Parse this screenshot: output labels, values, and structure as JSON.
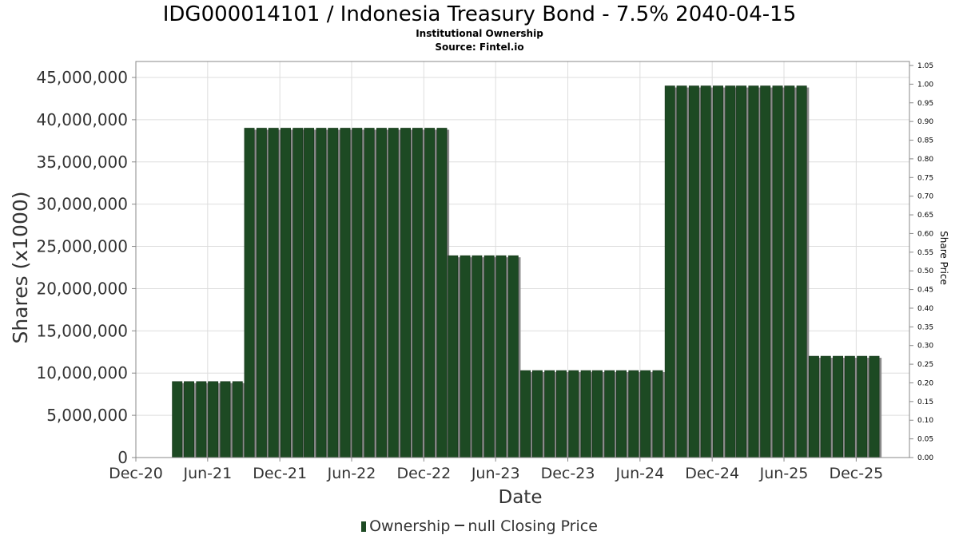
{
  "chart_data": {
    "type": "bar",
    "title": "IDG000014101 / Indonesia Treasury Bond - 7.5% 2040-04-15",
    "subtitle": "Institutional Ownership",
    "source": "Source: Fintel.io",
    "xlabel": "Date",
    "ylabel": "Shares (x1000)",
    "y2label": "Share Price",
    "ylim": [
      0,
      45000000
    ],
    "y2lim": [
      0,
      1.05
    ],
    "xlim": [
      "2020-12-01",
      "2026-04-15"
    ],
    "y_ticks": [
      "0",
      "5,000,000",
      "10,000,000",
      "15,000,000",
      "20,000,000",
      "25,000,000",
      "30,000,000",
      "35,000,000",
      "40,000,000",
      "45,000,000"
    ],
    "y2_ticks": [
      "0.00",
      "0.05",
      "0.10",
      "0.15",
      "0.20",
      "0.25",
      "0.30",
      "0.35",
      "0.40",
      "0.45",
      "0.50",
      "0.55",
      "0.60",
      "0.65",
      "0.70",
      "0.75",
      "0.80",
      "0.85",
      "0.90",
      "0.95",
      "1.00",
      "1.05"
    ],
    "x_ticks": [
      {
        "date": "2020-12-01",
        "label": "Dec-20"
      },
      {
        "date": "2021-06-01",
        "label": "Jun-21"
      },
      {
        "date": "2021-12-01",
        "label": "Dec-21"
      },
      {
        "date": "2022-06-01",
        "label": "Jun-22"
      },
      {
        "date": "2022-12-01",
        "label": "Dec-22"
      },
      {
        "date": "2023-06-01",
        "label": "Jun-23"
      },
      {
        "date": "2023-12-01",
        "label": "Dec-23"
      },
      {
        "date": "2024-06-01",
        "label": "Jun-24"
      },
      {
        "date": "2024-12-01",
        "label": "Dec-24"
      },
      {
        "date": "2025-06-01",
        "label": "Jun-25"
      },
      {
        "date": "2025-12-01",
        "label": "Dec-25"
      }
    ],
    "grid": true,
    "legend_position": "bottom",
    "bar_color": "#1d4a23",
    "series": [
      {
        "name": "Ownership",
        "points": [
          {
            "date": "2021-03-31",
            "value": 9000000
          },
          {
            "date": "2021-04-30",
            "value": 9000000
          },
          {
            "date": "2021-05-31",
            "value": 9000000
          },
          {
            "date": "2021-06-30",
            "value": 9000000
          },
          {
            "date": "2021-07-31",
            "value": 9000000
          },
          {
            "date": "2021-08-31",
            "value": 9000000
          },
          {
            "date": "2021-09-30",
            "value": 39000000
          },
          {
            "date": "2021-10-31",
            "value": 39000000
          },
          {
            "date": "2021-11-30",
            "value": 39000000
          },
          {
            "date": "2021-12-31",
            "value": 39000000
          },
          {
            "date": "2022-01-31",
            "value": 39000000
          },
          {
            "date": "2022-02-28",
            "value": 39000000
          },
          {
            "date": "2022-03-31",
            "value": 39000000
          },
          {
            "date": "2022-04-30",
            "value": 39000000
          },
          {
            "date": "2022-05-31",
            "value": 39000000
          },
          {
            "date": "2022-06-30",
            "value": 39000000
          },
          {
            "date": "2022-07-31",
            "value": 39000000
          },
          {
            "date": "2022-08-31",
            "value": 39000000
          },
          {
            "date": "2022-09-30",
            "value": 39000000
          },
          {
            "date": "2022-10-31",
            "value": 39000000
          },
          {
            "date": "2022-11-30",
            "value": 39000000
          },
          {
            "date": "2022-12-31",
            "value": 39000000
          },
          {
            "date": "2023-01-31",
            "value": 39000000
          },
          {
            "date": "2023-02-28",
            "value": 23900000
          },
          {
            "date": "2023-03-31",
            "value": 23900000
          },
          {
            "date": "2023-04-30",
            "value": 23900000
          },
          {
            "date": "2023-05-31",
            "value": 23900000
          },
          {
            "date": "2023-06-30",
            "value": 23900000
          },
          {
            "date": "2023-07-31",
            "value": 23900000
          },
          {
            "date": "2023-08-31",
            "value": 10300000
          },
          {
            "date": "2023-09-30",
            "value": 10300000
          },
          {
            "date": "2023-10-31",
            "value": 10300000
          },
          {
            "date": "2023-11-30",
            "value": 10300000
          },
          {
            "date": "2023-12-31",
            "value": 10300000
          },
          {
            "date": "2024-01-31",
            "value": 10300000
          },
          {
            "date": "2024-02-29",
            "value": 10300000
          },
          {
            "date": "2024-03-31",
            "value": 10300000
          },
          {
            "date": "2024-04-30",
            "value": 10300000
          },
          {
            "date": "2024-05-31",
            "value": 10300000
          },
          {
            "date": "2024-06-30",
            "value": 10300000
          },
          {
            "date": "2024-07-31",
            "value": 10300000
          },
          {
            "date": "2024-08-31",
            "value": 44000000
          },
          {
            "date": "2024-09-30",
            "value": 44000000
          },
          {
            "date": "2024-10-31",
            "value": 44000000
          },
          {
            "date": "2024-11-30",
            "value": 44000000
          },
          {
            "date": "2024-12-31",
            "value": 44000000
          },
          {
            "date": "2025-01-31",
            "value": 44000000
          },
          {
            "date": "2025-02-28",
            "value": 44000000
          },
          {
            "date": "2025-03-31",
            "value": 44000000
          },
          {
            "date": "2025-04-30",
            "value": 44000000
          },
          {
            "date": "2025-05-31",
            "value": 44000000
          },
          {
            "date": "2025-06-30",
            "value": 44000000
          },
          {
            "date": "2025-07-31",
            "value": 44000000
          },
          {
            "date": "2025-08-31",
            "value": 12000000
          },
          {
            "date": "2025-09-30",
            "value": 12000000
          },
          {
            "date": "2025-10-31",
            "value": 12000000
          },
          {
            "date": "2025-11-30",
            "value": 12000000
          },
          {
            "date": "2025-12-31",
            "value": 12000000
          },
          {
            "date": "2026-01-31",
            "value": 12000000
          }
        ]
      },
      {
        "name": "null Closing Price",
        "points": []
      }
    ]
  },
  "legend": {
    "ownership_label": "Ownership",
    "price_label": "null Closing Price"
  }
}
